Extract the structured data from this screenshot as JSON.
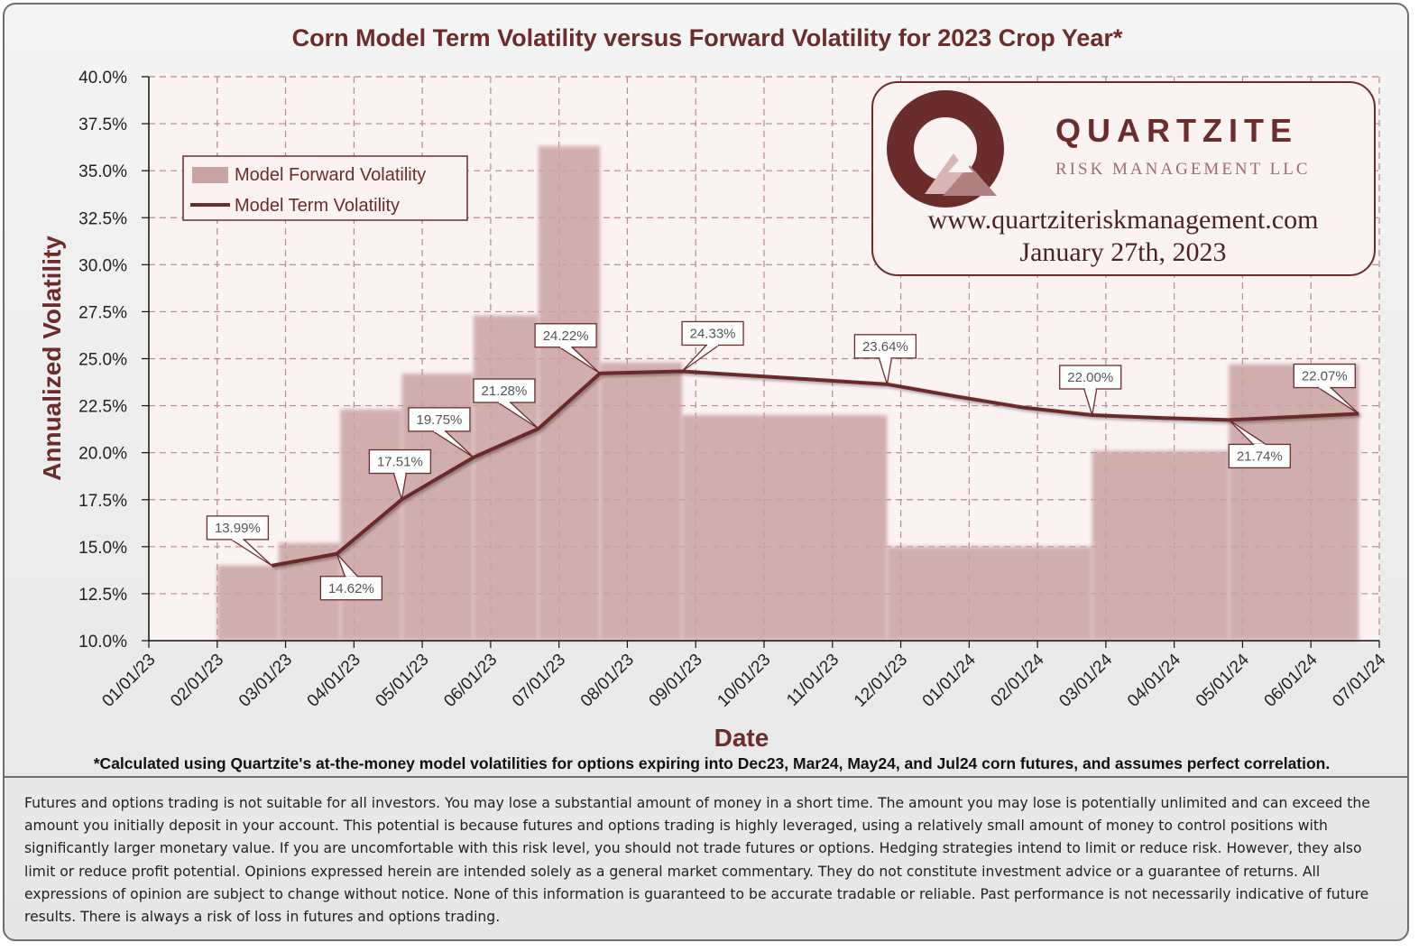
{
  "colors": {
    "title": "#6b2c2c",
    "bar": "#c9a2a2",
    "line": "#6b2c2c",
    "plot_bg": "#fbf2f2",
    "grid": "#b9898d"
  },
  "chart_data": {
    "type": "bar+line",
    "title": "Corn Model Term Volatility versus Forward Volatility for 2023 Crop Year*",
    "xlabel": "Date",
    "ylabel": "Annualized Volatility",
    "ylim": [
      10.0,
      40.0
    ],
    "y_ticks": [
      "10.0%",
      "12.5%",
      "15.0%",
      "17.5%",
      "20.0%",
      "22.5%",
      "25.0%",
      "27.5%",
      "30.0%",
      "32.5%",
      "35.0%",
      "37.5%",
      "40.0%"
    ],
    "x_ticks": [
      "01/01/23",
      "02/01/23",
      "03/01/23",
      "04/01/23",
      "05/01/23",
      "06/01/23",
      "07/01/23",
      "08/01/23",
      "09/01/23",
      "10/01/23",
      "11/01/23",
      "12/01/23",
      "01/01/24",
      "02/01/24",
      "03/01/24",
      "04/01/24",
      "05/01/24",
      "06/01/24",
      "07/01/24"
    ],
    "x_range_months": [
      0,
      18
    ],
    "grid": true,
    "legend_position": "top-left",
    "series": [
      {
        "name": "Model Forward Volatility",
        "kind": "step-bar",
        "segments": [
          {
            "start": 1.0,
            "end": 1.9,
            "value": 14.0
          },
          {
            "start": 1.9,
            "end": 2.8,
            "value": 15.2
          },
          {
            "start": 2.8,
            "end": 3.7,
            "value": 22.3
          },
          {
            "start": 3.7,
            "end": 4.75,
            "value": 24.2
          },
          {
            "start": 4.75,
            "end": 5.7,
            "value": 27.3
          },
          {
            "start": 5.7,
            "end": 6.6,
            "value": 36.3
          },
          {
            "start": 6.6,
            "end": 7.8,
            "value": 24.8
          },
          {
            "start": 7.8,
            "end": 10.8,
            "value": 22.0
          },
          {
            "start": 10.8,
            "end": 13.8,
            "value": 15.0
          },
          {
            "start": 13.8,
            "end": 15.8,
            "value": 20.1
          },
          {
            "start": 15.8,
            "end": 17.7,
            "value": 24.7
          }
        ]
      },
      {
        "name": "Model Term Volatility",
        "kind": "line",
        "points": [
          {
            "x": 1.8,
            "y": 13.99
          },
          {
            "x": 2.75,
            "y": 14.62
          },
          {
            "x": 3.7,
            "y": 17.51
          },
          {
            "x": 4.75,
            "y": 19.75
          },
          {
            "x": 5.7,
            "y": 21.28
          },
          {
            "x": 6.6,
            "y": 24.22
          },
          {
            "x": 7.8,
            "y": 24.33
          },
          {
            "x": 10.8,
            "y": 23.64
          },
          {
            "x": 11.8,
            "y": 23.0
          },
          {
            "x": 12.8,
            "y": 22.4
          },
          {
            "x": 13.8,
            "y": 22.0
          },
          {
            "x": 14.8,
            "y": 21.85
          },
          {
            "x": 15.8,
            "y": 21.74
          },
          {
            "x": 17.7,
            "y": 22.07
          }
        ]
      }
    ],
    "data_labels": [
      {
        "text": "13.99%",
        "x": 1.8,
        "y": 13.99,
        "pos": "above-left"
      },
      {
        "text": "14.62%",
        "x": 2.75,
        "y": 14.62,
        "pos": "below"
      },
      {
        "text": "17.51%",
        "x": 3.7,
        "y": 17.51,
        "pos": "above"
      },
      {
        "text": "19.75%",
        "x": 4.75,
        "y": 19.75,
        "pos": "above-left"
      },
      {
        "text": "21.28%",
        "x": 5.7,
        "y": 21.28,
        "pos": "above-left"
      },
      {
        "text": "24.22%",
        "x": 6.6,
        "y": 24.22,
        "pos": "above-left"
      },
      {
        "text": "24.33%",
        "x": 7.8,
        "y": 24.33,
        "pos": "above-right"
      },
      {
        "text": "23.64%",
        "x": 10.8,
        "y": 23.64,
        "pos": "above"
      },
      {
        "text": "22.00%",
        "x": 13.8,
        "y": 22.0,
        "pos": "above"
      },
      {
        "text": "21.74%",
        "x": 15.8,
        "y": 21.74,
        "pos": "below-right"
      },
      {
        "text": "22.07%",
        "x": 17.7,
        "y": 22.07,
        "pos": "above-left"
      }
    ]
  },
  "legend": {
    "items": [
      "Model Forward Volatility",
      "Model Term Volatility"
    ]
  },
  "logo": {
    "name": "QUARTZITE",
    "subtitle": "RISK MANAGEMENT LLC",
    "url": "www.quartziteriskmanagement.com",
    "date": "January 27th, 2023"
  },
  "footnote": "*Calculated using Quartzite's at-the-money model volatilities for options expiring into Dec23, Mar24, May24, and Jul24 corn futures, and assumes perfect correlation.",
  "disclaimer": "Futures and options trading is not suitable for all investors. You may lose a substantial amount of money in a short time. The amount you may lose is potentially unlimited and can exceed the amount you initially deposit in your account. This potential is because futures and options trading is highly leveraged, using a relatively small amount of money to control positions with significantly larger monetary value. If you are uncomfortable with this risk level, you should not trade futures or options. Hedging strategies intend to limit or reduce risk. However, they also limit or reduce profit potential. Opinions expressed herein are intended solely as a general market commentary. They do not constitute investment advice or a guarantee of returns. All expressions of opinion are subject to change without notice. None of this information is guaranteed to be accurate tradable or reliable. Past performance is not necessarily indicative of future results. There is always a risk of loss in futures and options trading."
}
